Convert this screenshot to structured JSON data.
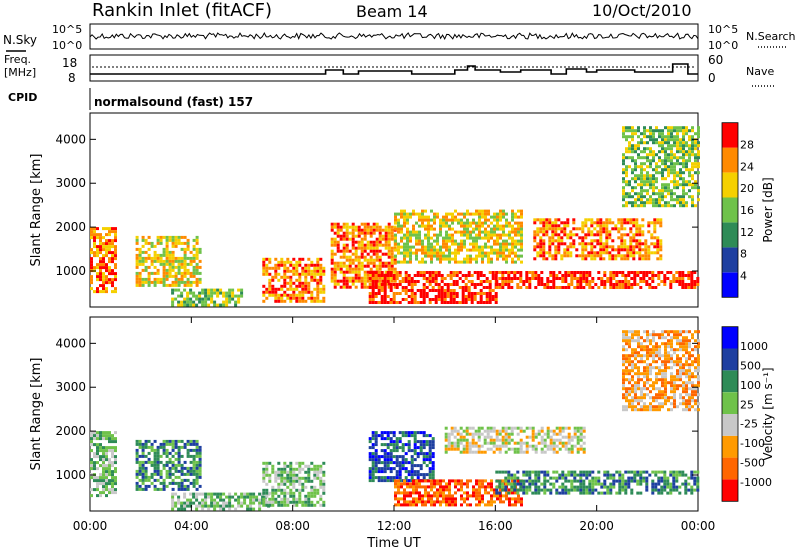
{
  "header": {
    "station": "Rankin Inlet (fitACF)",
    "beam": "Beam 14",
    "date": "10/Oct/2010"
  },
  "status_panel": {
    "nsky_label": "N.Sky",
    "nsky_tick_top": "10^5",
    "nsky_tick_bottom": "10^0",
    "nsearch_label": "N.Search",
    "nsearch_tick_top": "10^5",
    "nsearch_tick_bottom": "10^0",
    "freq_label_1": "Freq.",
    "freq_label_2": "[MHz]",
    "freq_tick_top": "18",
    "freq_tick_bottom": "8",
    "nave_label": "Nave",
    "nave_tick_top": "60",
    "nave_tick_bottom": "0",
    "cpid_label": "CPID",
    "cpid_text": "normalsound (fast) 157"
  },
  "chart_data": [
    {
      "type": "heatmap",
      "panel": "power",
      "ylabel": "Slant Range [km]",
      "yticks": [
        "1000",
        "2000",
        "3000",
        "4000"
      ],
      "ylim": [
        180,
        4600
      ],
      "xlim_hours": [
        0,
        24
      ],
      "colorbar_label": "Power [dB]",
      "colorbar_ticks": [
        "28",
        "24",
        "20",
        "16",
        "12",
        "8",
        "4"
      ],
      "colors": [
        "#0000ff",
        "#1e3fa0",
        "#2e8b57",
        "#6fc24a",
        "#f5d000",
        "#ff8a00",
        "#ff0000"
      ],
      "echo_regions": [
        {
          "t": [
            0.0,
            1.0
          ],
          "range_km": [
            500,
            2000
          ],
          "level": 5
        },
        {
          "t": [
            1.8,
            4.3
          ],
          "range_km": [
            700,
            1800
          ],
          "level": 4
        },
        {
          "t": [
            3.2,
            6.0
          ],
          "range_km": [
            200,
            600
          ],
          "level": 3
        },
        {
          "t": [
            6.8,
            9.2
          ],
          "range_km": [
            300,
            1300
          ],
          "level": 5
        },
        {
          "t": [
            9.5,
            12.0
          ],
          "range_km": [
            600,
            2100
          ],
          "level": 5
        },
        {
          "t": [
            11.0,
            16.0
          ],
          "range_km": [
            300,
            1000
          ],
          "level": 6
        },
        {
          "t": [
            12.0,
            17.0
          ],
          "range_km": [
            1200,
            2400
          ],
          "level": 4
        },
        {
          "t": [
            16.0,
            24.0
          ],
          "range_km": [
            600,
            1000
          ],
          "level": 6
        },
        {
          "t": [
            17.5,
            22.5
          ],
          "range_km": [
            1300,
            2200
          ],
          "level": 5
        },
        {
          "t": [
            21.0,
            24.0
          ],
          "range_km": [
            2500,
            4300
          ],
          "level": 3
        }
      ]
    },
    {
      "type": "heatmap",
      "panel": "velocity",
      "ylabel": "Slant Range [km]",
      "yticks": [
        "1000",
        "2000",
        "3000",
        "4000"
      ],
      "ylim": [
        180,
        4600
      ],
      "xlim_hours": [
        0,
        24
      ],
      "xticks": [
        "00:00",
        "04:00",
        "08:00",
        "12:00",
        "16:00",
        "20:00",
        "00:00"
      ],
      "xlabel": "Time UT",
      "colorbar_label": "Velocity [m s⁻¹]",
      "colorbar_ticks": [
        "1000",
        "500",
        "100",
        "25",
        "-25",
        "-100",
        "-500",
        "-1000"
      ],
      "colors": [
        "#ff0000",
        "#ff6600",
        "#ff9a00",
        "#c8c8c8",
        "#6fc24a",
        "#2e8b57",
        "#1e3fa0",
        "#0000ff"
      ],
      "echo_regions": [
        {
          "t": [
            0.0,
            1.0
          ],
          "range_km": [
            500,
            2000
          ],
          "level": 4
        },
        {
          "t": [
            1.8,
            4.3
          ],
          "range_km": [
            700,
            1800
          ],
          "level": 5
        },
        {
          "t": [
            3.2,
            7.0
          ],
          "range_km": [
            200,
            600
          ],
          "level": 4
        },
        {
          "t": [
            6.8,
            9.2
          ],
          "range_km": [
            300,
            1300
          ],
          "level": 4
        },
        {
          "t": [
            11.0,
            13.5
          ],
          "range_km": [
            900,
            2000
          ],
          "level": 6
        },
        {
          "t": [
            12.0,
            17.0
          ],
          "range_km": [
            300,
            900
          ],
          "level": 1
        },
        {
          "t": [
            14.0,
            19.5
          ],
          "range_km": [
            1500,
            2100
          ],
          "level": 3
        },
        {
          "t": [
            16.0,
            24.0
          ],
          "range_km": [
            600,
            1100
          ],
          "level": 5
        },
        {
          "t": [
            21.0,
            24.0
          ],
          "range_km": [
            2500,
            4300
          ],
          "level": 2
        }
      ]
    }
  ]
}
